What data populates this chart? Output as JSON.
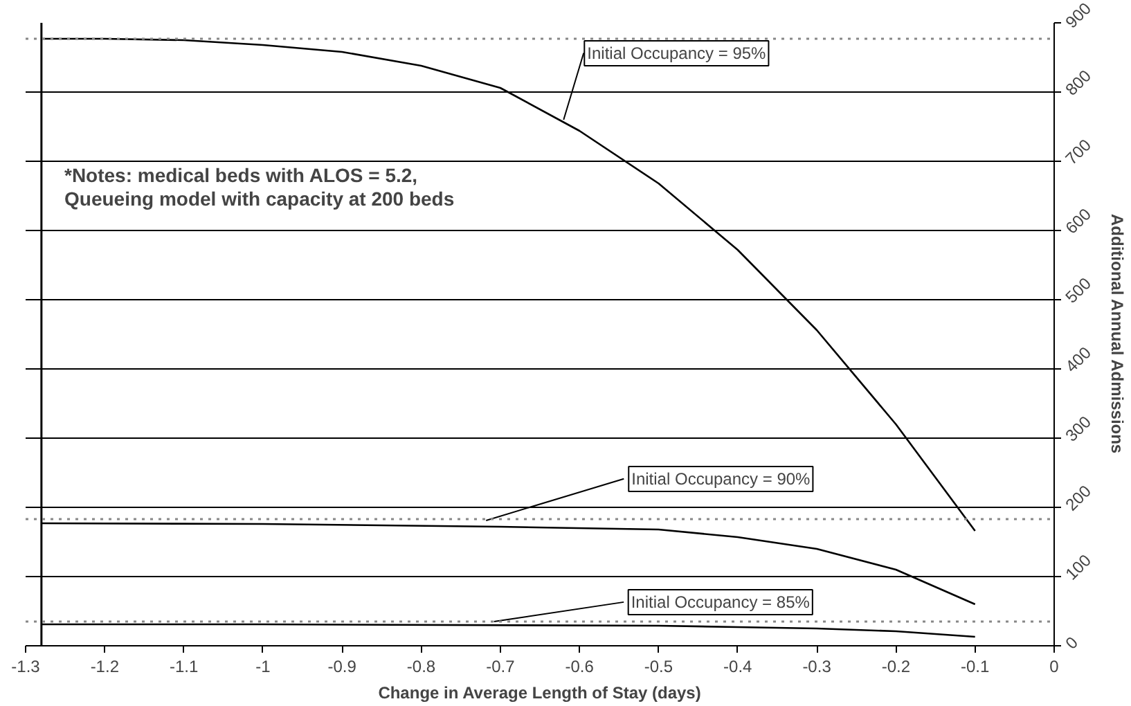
{
  "chart_data": {
    "type": "line",
    "xlabel": "Change in Average Length of Stay (days)",
    "ylabel": "Additional Annual Admissions",
    "xlim": [
      -1.3,
      0
    ],
    "xticks": [
      -1.3,
      -1.2,
      -1.1,
      -1,
      -0.9,
      -0.8,
      -0.7,
      -0.6,
      -0.5,
      -0.4,
      -0.3,
      -0.2,
      -0.1,
      0
    ],
    "ylim": [
      0,
      900
    ],
    "yticks": [
      0,
      100,
      200,
      300,
      400,
      500,
      600,
      700,
      800,
      900
    ],
    "grid": "y",
    "marker": "none",
    "line_style": "solid",
    "series": [
      {
        "color": "#000000",
        "x": [
          -1.28,
          -1.2,
          -1.1,
          -1.0,
          -0.9,
          -0.8,
          -0.7,
          -0.6,
          -0.5,
          -0.4,
          -0.3,
          -0.2,
          -0.1
        ],
        "values": [
          877,
          877,
          875,
          868,
          858,
          838,
          806,
          744,
          668,
          572,
          456,
          320,
          166
        ]
      },
      {
        "color": "#000000",
        "x": [
          -1.28,
          -1.0,
          -0.7,
          -0.5,
          -0.4,
          -0.3,
          -0.2,
          -0.1
        ],
        "values": [
          177,
          176,
          172,
          168,
          157,
          140,
          110,
          60
        ]
      },
      {
        "color": "#000000",
        "x": [
          -1.28,
          -1.0,
          -0.5,
          -0.4,
          -0.3,
          -0.2,
          -0.1
        ],
        "values": [
          31,
          31,
          29,
          27,
          25,
          21,
          13
        ]
      }
    ],
    "ref_lines": [
      {
        "axis": "x",
        "value": -1.28,
        "color": "#000000",
        "line_style": "solid"
      },
      {
        "axis": "y",
        "value": 877,
        "color": "#888888",
        "line_style": "dotted"
      },
      {
        "axis": "y",
        "value": 183,
        "color": "#888888",
        "line_style": "dotted"
      },
      {
        "axis": "y",
        "value": 35,
        "color": "#888888",
        "line_style": "dotted"
      }
    ],
    "annotations": [
      {
        "text": "Initial Occupancy = 95%",
        "x": -0.62,
        "y": 760
      },
      {
        "text": "Initial Occupancy = 90%",
        "x": -0.718,
        "y": 181
      },
      {
        "text": "Initial Occupancy = 85%",
        "x": -0.708,
        "y": 35
      },
      "*Notes: medical beds with ALOS = 5.2,\nQueueing model with capacity at 200 beds"
    ]
  }
}
